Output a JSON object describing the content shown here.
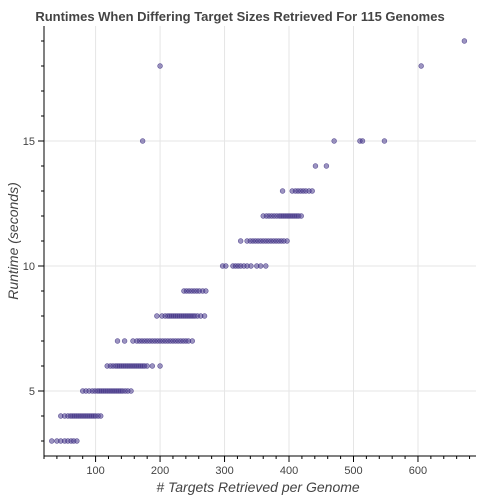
{
  "chart_data": {
    "type": "scatter",
    "title": "Runtimes When Differing Target Sizes Retrieved For 115 Genomes",
    "xlabel": "# Targets Retrieved per Genome",
    "ylabel": "Runtime (seconds)",
    "xlim": [
      20,
      690
    ],
    "ylim": [
      2.4,
      19.6
    ],
    "xticks": [
      100,
      200,
      300,
      400,
      500,
      600,
      700
    ],
    "yticks": [
      5,
      10,
      15
    ],
    "grid": true,
    "legend": "none",
    "point_color": "#4b3c8e",
    "points": [
      {
        "x": 32,
        "y": 3
      },
      {
        "x": 40,
        "y": 3
      },
      {
        "x": 46,
        "y": 3
      },
      {
        "x": 52,
        "y": 3
      },
      {
        "x": 57,
        "y": 3
      },
      {
        "x": 62,
        "y": 3
      },
      {
        "x": 66,
        "y": 3
      },
      {
        "x": 71,
        "y": 3
      },
      {
        "x": 46,
        "y": 4
      },
      {
        "x": 52,
        "y": 4
      },
      {
        "x": 57,
        "y": 4
      },
      {
        "x": 61,
        "y": 4
      },
      {
        "x": 64,
        "y": 4
      },
      {
        "x": 67,
        "y": 4
      },
      {
        "x": 70,
        "y": 4
      },
      {
        "x": 73,
        "y": 4
      },
      {
        "x": 76,
        "y": 4
      },
      {
        "x": 79,
        "y": 4
      },
      {
        "x": 82,
        "y": 4
      },
      {
        "x": 85,
        "y": 4
      },
      {
        "x": 88,
        "y": 4
      },
      {
        "x": 91,
        "y": 4
      },
      {
        "x": 94,
        "y": 4
      },
      {
        "x": 97,
        "y": 4
      },
      {
        "x": 100,
        "y": 4
      },
      {
        "x": 104,
        "y": 4
      },
      {
        "x": 108,
        "y": 4
      },
      {
        "x": 80,
        "y": 5
      },
      {
        "x": 85,
        "y": 5
      },
      {
        "x": 90,
        "y": 5
      },
      {
        "x": 95,
        "y": 5
      },
      {
        "x": 99,
        "y": 5
      },
      {
        "x": 103,
        "y": 5
      },
      {
        "x": 106,
        "y": 5
      },
      {
        "x": 109,
        "y": 5
      },
      {
        "x": 112,
        "y": 5
      },
      {
        "x": 115,
        "y": 5
      },
      {
        "x": 118,
        "y": 5
      },
      {
        "x": 121,
        "y": 5
      },
      {
        "x": 124,
        "y": 5
      },
      {
        "x": 127,
        "y": 5
      },
      {
        "x": 130,
        "y": 5
      },
      {
        "x": 133,
        "y": 5
      },
      {
        "x": 136,
        "y": 5
      },
      {
        "x": 139,
        "y": 5
      },
      {
        "x": 142,
        "y": 5
      },
      {
        "x": 146,
        "y": 5
      },
      {
        "x": 150,
        "y": 5
      },
      {
        "x": 155,
        "y": 5
      },
      {
        "x": 118,
        "y": 6
      },
      {
        "x": 123,
        "y": 6
      },
      {
        "x": 127,
        "y": 6
      },
      {
        "x": 131,
        "y": 6
      },
      {
        "x": 134,
        "y": 6
      },
      {
        "x": 137,
        "y": 6
      },
      {
        "x": 140,
        "y": 6
      },
      {
        "x": 143,
        "y": 6
      },
      {
        "x": 146,
        "y": 6
      },
      {
        "x": 149,
        "y": 6
      },
      {
        "x": 152,
        "y": 6
      },
      {
        "x": 155,
        "y": 6
      },
      {
        "x": 158,
        "y": 6
      },
      {
        "x": 161,
        "y": 6
      },
      {
        "x": 164,
        "y": 6
      },
      {
        "x": 167,
        "y": 6
      },
      {
        "x": 170,
        "y": 6
      },
      {
        "x": 173,
        "y": 6
      },
      {
        "x": 176,
        "y": 6
      },
      {
        "x": 180,
        "y": 6
      },
      {
        "x": 188,
        "y": 6
      },
      {
        "x": 200,
        "y": 6
      },
      {
        "x": 134,
        "y": 7
      },
      {
        "x": 145,
        "y": 7
      },
      {
        "x": 158,
        "y": 7
      },
      {
        "x": 164,
        "y": 7
      },
      {
        "x": 168,
        "y": 7
      },
      {
        "x": 172,
        "y": 7
      },
      {
        "x": 176,
        "y": 7
      },
      {
        "x": 180,
        "y": 7
      },
      {
        "x": 184,
        "y": 7
      },
      {
        "x": 188,
        "y": 7
      },
      {
        "x": 192,
        "y": 7
      },
      {
        "x": 196,
        "y": 7
      },
      {
        "x": 200,
        "y": 7
      },
      {
        "x": 204,
        "y": 7
      },
      {
        "x": 208,
        "y": 7
      },
      {
        "x": 212,
        "y": 7
      },
      {
        "x": 216,
        "y": 7
      },
      {
        "x": 220,
        "y": 7
      },
      {
        "x": 224,
        "y": 7
      },
      {
        "x": 228,
        "y": 7
      },
      {
        "x": 232,
        "y": 7
      },
      {
        "x": 236,
        "y": 7
      },
      {
        "x": 240,
        "y": 7
      },
      {
        "x": 244,
        "y": 7
      },
      {
        "x": 250,
        "y": 7
      },
      {
        "x": 195,
        "y": 8
      },
      {
        "x": 203,
        "y": 8
      },
      {
        "x": 208,
        "y": 8
      },
      {
        "x": 212,
        "y": 8
      },
      {
        "x": 215,
        "y": 8
      },
      {
        "x": 218,
        "y": 8
      },
      {
        "x": 221,
        "y": 8
      },
      {
        "x": 224,
        "y": 8
      },
      {
        "x": 227,
        "y": 8
      },
      {
        "x": 230,
        "y": 8
      },
      {
        "x": 233,
        "y": 8
      },
      {
        "x": 236,
        "y": 8
      },
      {
        "x": 239,
        "y": 8
      },
      {
        "x": 242,
        "y": 8
      },
      {
        "x": 245,
        "y": 8
      },
      {
        "x": 248,
        "y": 8
      },
      {
        "x": 251,
        "y": 8
      },
      {
        "x": 254,
        "y": 8
      },
      {
        "x": 258,
        "y": 8
      },
      {
        "x": 263,
        "y": 8
      },
      {
        "x": 269,
        "y": 8
      },
      {
        "x": 237,
        "y": 9
      },
      {
        "x": 241,
        "y": 9
      },
      {
        "x": 245,
        "y": 9
      },
      {
        "x": 249,
        "y": 9
      },
      {
        "x": 253,
        "y": 9
      },
      {
        "x": 257,
        "y": 9
      },
      {
        "x": 261,
        "y": 9
      },
      {
        "x": 266,
        "y": 9
      },
      {
        "x": 271,
        "y": 9
      },
      {
        "x": 297,
        "y": 10
      },
      {
        "x": 302,
        "y": 10
      },
      {
        "x": 313,
        "y": 10
      },
      {
        "x": 317,
        "y": 10
      },
      {
        "x": 321,
        "y": 10
      },
      {
        "x": 325,
        "y": 10
      },
      {
        "x": 330,
        "y": 10
      },
      {
        "x": 335,
        "y": 10
      },
      {
        "x": 341,
        "y": 10
      },
      {
        "x": 350,
        "y": 10
      },
      {
        "x": 356,
        "y": 10
      },
      {
        "x": 364,
        "y": 10
      },
      {
        "x": 325,
        "y": 11
      },
      {
        "x": 335,
        "y": 11
      },
      {
        "x": 340,
        "y": 11
      },
      {
        "x": 344,
        "y": 11
      },
      {
        "x": 348,
        "y": 11
      },
      {
        "x": 352,
        "y": 11
      },
      {
        "x": 356,
        "y": 11
      },
      {
        "x": 360,
        "y": 11
      },
      {
        "x": 364,
        "y": 11
      },
      {
        "x": 368,
        "y": 11
      },
      {
        "x": 372,
        "y": 11
      },
      {
        "x": 376,
        "y": 11
      },
      {
        "x": 380,
        "y": 11
      },
      {
        "x": 384,
        "y": 11
      },
      {
        "x": 388,
        "y": 11
      },
      {
        "x": 392,
        "y": 11
      },
      {
        "x": 397,
        "y": 11
      },
      {
        "x": 360,
        "y": 12
      },
      {
        "x": 365,
        "y": 12
      },
      {
        "x": 369,
        "y": 12
      },
      {
        "x": 373,
        "y": 12
      },
      {
        "x": 377,
        "y": 12
      },
      {
        "x": 381,
        "y": 12
      },
      {
        "x": 385,
        "y": 12
      },
      {
        "x": 388,
        "y": 12
      },
      {
        "x": 391,
        "y": 12
      },
      {
        "x": 394,
        "y": 12
      },
      {
        "x": 397,
        "y": 12
      },
      {
        "x": 400,
        "y": 12
      },
      {
        "x": 403,
        "y": 12
      },
      {
        "x": 406,
        "y": 12
      },
      {
        "x": 409,
        "y": 12
      },
      {
        "x": 412,
        "y": 12
      },
      {
        "x": 415,
        "y": 12
      },
      {
        "x": 419,
        "y": 12
      },
      {
        "x": 390,
        "y": 13
      },
      {
        "x": 405,
        "y": 13
      },
      {
        "x": 410,
        "y": 13
      },
      {
        "x": 414,
        "y": 13
      },
      {
        "x": 418,
        "y": 13
      },
      {
        "x": 422,
        "y": 13
      },
      {
        "x": 426,
        "y": 13
      },
      {
        "x": 431,
        "y": 13
      },
      {
        "x": 436,
        "y": 13
      },
      {
        "x": 441,
        "y": 14
      },
      {
        "x": 458,
        "y": 14
      },
      {
        "x": 173,
        "y": 15
      },
      {
        "x": 470,
        "y": 15
      },
      {
        "x": 510,
        "y": 15
      },
      {
        "x": 514,
        "y": 15
      },
      {
        "x": 548,
        "y": 15
      },
      {
        "x": 200,
        "y": 18
      },
      {
        "x": 605,
        "y": 18
      },
      {
        "x": 672,
        "y": 19
      }
    ]
  }
}
